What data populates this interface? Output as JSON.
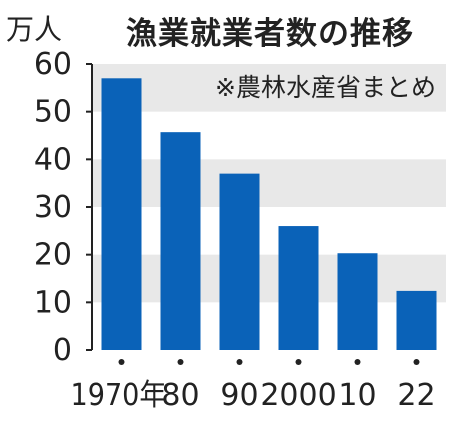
{
  "chart_data": {
    "type": "bar",
    "title": "漁業就業者数の推移",
    "unit": "万人",
    "source_note": "※農林水産省まとめ",
    "categories": [
      "1970年",
      "80",
      "90",
      "2000",
      "10",
      "22"
    ],
    "values": [
      57,
      45.7,
      37,
      26,
      20.3,
      12.4
    ],
    "ylim": [
      0,
      60
    ],
    "yticks": [
      0,
      10,
      20,
      30,
      40,
      50,
      60
    ],
    "bar_color": "#0a62b8",
    "band_color": "#e8e8e8"
  }
}
